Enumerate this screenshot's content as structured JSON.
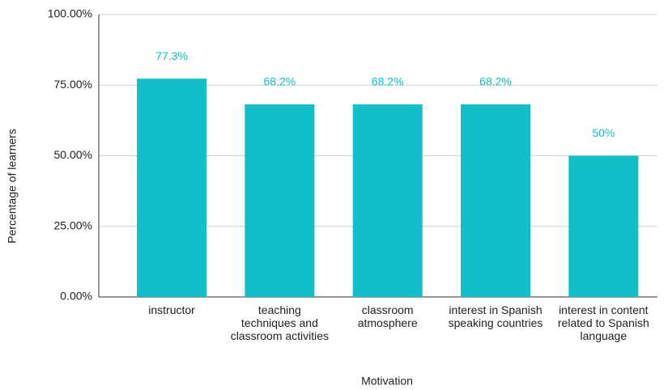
{
  "chart_data": {
    "type": "bar",
    "x_label": "Motivation",
    "y_label": "Percentage of learners",
    "categories": [
      "instructor",
      "teaching techniques and classroom activities",
      "classroom atmosphere",
      "interest in Spanish speaking countries",
      "interest in content related to Spanish language"
    ],
    "values": [
      77.3,
      68.2,
      68.2,
      68.2,
      50
    ],
    "value_labels": [
      "77.3%",
      "68.2%",
      "68.2%",
      "68.2%",
      "50%"
    ],
    "color": "#12bfc8",
    "ylim": [
      0,
      100
    ],
    "yticks": [
      {
        "value": 0,
        "label": "0.00%"
      },
      {
        "value": 25,
        "label": "25.00%"
      },
      {
        "value": 50,
        "label": "50.00%"
      },
      {
        "value": 75,
        "label": "75.00%"
      },
      {
        "value": 100,
        "label": "100.00%"
      }
    ],
    "grid": true
  }
}
